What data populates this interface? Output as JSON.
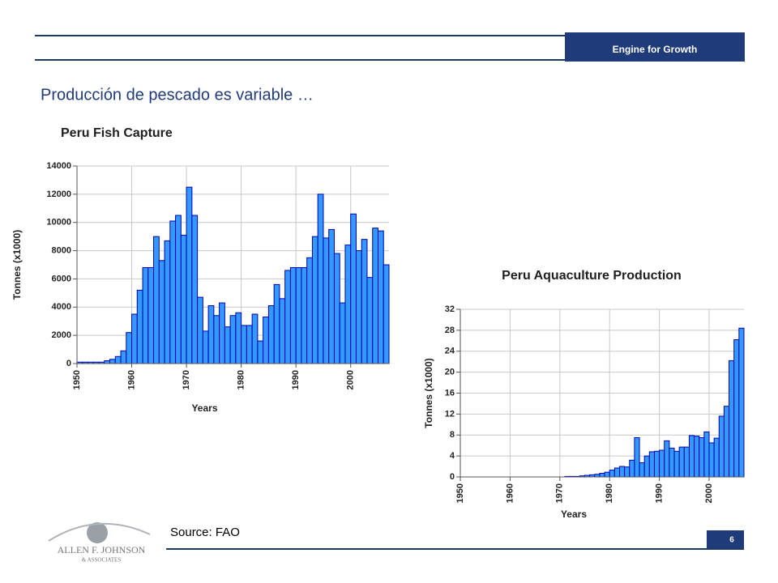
{
  "header": {
    "tag": "Engine for Growth"
  },
  "title": "Producción de pescado es variable …",
  "source": "Source: FAO",
  "page_number": "6",
  "logo": {
    "name": "ALLEN F. JOHNSON",
    "sub": "& ASSOCIATES"
  },
  "chart_data": [
    {
      "type": "bar",
      "title": "Peru Fish Capture",
      "x_label": "Years",
      "y_label": "Tonnes (x1000)",
      "color": "#3399ff",
      "grid": true,
      "x": [
        1950,
        1951,
        1952,
        1953,
        1954,
        1955,
        1956,
        1957,
        1958,
        1959,
        1960,
        1961,
        1962,
        1963,
        1964,
        1965,
        1966,
        1967,
        1968,
        1969,
        1970,
        1971,
        1972,
        1973,
        1974,
        1975,
        1976,
        1977,
        1978,
        1979,
        1980,
        1981,
        1982,
        1983,
        1984,
        1985,
        1986,
        1987,
        1988,
        1989,
        1990,
        1991,
        1992,
        1993,
        1994,
        1995,
        1996,
        1997,
        1998,
        1999,
        2000,
        2001,
        2002,
        2003,
        2004,
        2005,
        2006
      ],
      "values": [
        100,
        100,
        100,
        100,
        100,
        200,
        300,
        500,
        900,
        2200,
        3500,
        5200,
        6800,
        6800,
        9000,
        7300,
        8700,
        10100,
        10500,
        9100,
        12500,
        10500,
        4700,
        2300,
        4100,
        3400,
        4300,
        2600,
        3400,
        3600,
        2700,
        2700,
        3500,
        1600,
        3300,
        4100,
        5600,
        4600,
        6600,
        6800,
        6800,
        6800,
        7500,
        9000,
        12000,
        8900,
        9500,
        7800,
        4300,
        8400,
        10600,
        8000,
        8800,
        6100,
        9600,
        9400,
        7000
      ],
      "xlim": [
        1950,
        2007
      ],
      "xticks": [
        1950,
        1960,
        1970,
        1980,
        1990,
        2000
      ],
      "ylim": [
        0,
        14000
      ],
      "yticks": [
        0,
        2000,
        4000,
        6000,
        8000,
        10000,
        12000,
        14000
      ]
    },
    {
      "type": "bar",
      "title": "Peru Aquaculture Production",
      "x_label": "Years",
      "y_label": "Tonnes (x1000)",
      "color": "#3399ff",
      "grid": true,
      "x": [
        1950,
        1951,
        1952,
        1953,
        1954,
        1955,
        1956,
        1957,
        1958,
        1959,
        1960,
        1961,
        1962,
        1963,
        1964,
        1965,
        1966,
        1967,
        1968,
        1969,
        1970,
        1971,
        1972,
        1973,
        1974,
        1975,
        1976,
        1977,
        1978,
        1979,
        1980,
        1981,
        1982,
        1983,
        1984,
        1985,
        1986,
        1987,
        1988,
        1989,
        1990,
        1991,
        1992,
        1993,
        1994,
        1995,
        1996,
        1997,
        1998,
        1999,
        2000,
        2001,
        2002,
        2003,
        2004,
        2005,
        2006
      ],
      "values": [
        0,
        0,
        0,
        0,
        0,
        0,
        0,
        0,
        0,
        0,
        0,
        0,
        0,
        0,
        0,
        0,
        0,
        0,
        0,
        0,
        0,
        0.1,
        0.1,
        0.1,
        0.2,
        0.3,
        0.4,
        0.5,
        0.7,
        0.9,
        1.3,
        1.7,
        2,
        1.9,
        3.2,
        7.5,
        2.7,
        4,
        4.8,
        4.9,
        5.1,
        6.9,
        5.5,
        4.9,
        5.7,
        5.7,
        7.9,
        7.8,
        7.5,
        8.6,
        6.5,
        7.4,
        11.6,
        13.5,
        22.2,
        26.2,
        28.4
      ],
      "xlim": [
        1950,
        2007
      ],
      "xticks": [
        1950,
        1960,
        1970,
        1980,
        1990,
        2000
      ],
      "ylim": [
        0,
        32
      ],
      "yticks": [
        0,
        4,
        8,
        12,
        16,
        20,
        24,
        28,
        32
      ]
    }
  ]
}
